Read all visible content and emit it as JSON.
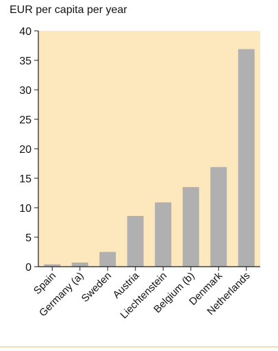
{
  "chart_data": {
    "type": "bar",
    "title": "",
    "xlabel": "",
    "ylabel": "EUR per capita per year",
    "categories": [
      "Spain",
      "Germany (a)",
      "Sweden",
      "Austria",
      "Liechtenstein",
      "Belgium (b)",
      "Denmark",
      "Netherlands"
    ],
    "values": [
      0.4,
      0.7,
      2.5,
      8.6,
      10.9,
      13.5,
      16.9,
      36.9
    ],
    "ylim": [
      0,
      40
    ],
    "yticks": [
      0,
      5,
      10,
      15,
      20,
      25,
      30,
      35,
      40
    ],
    "grid": false,
    "legend": "none",
    "colors": {
      "plot_background": "#fde8bd",
      "bar": "#b0b0b0",
      "axis": "#1a1a1a",
      "footer_rule": "#eadfb8"
    }
  }
}
